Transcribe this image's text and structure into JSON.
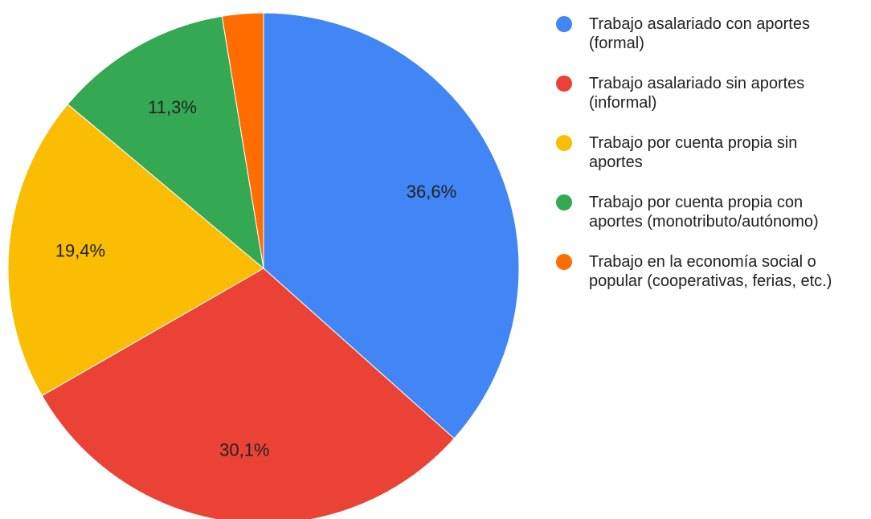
{
  "chart_data": {
    "type": "pie",
    "categories": [
      "Trabajo asalariado con aportes (formal)",
      "Trabajo asalariado sin aportes (informal)",
      "Trabajo por cuenta propia sin aportes",
      "Trabajo por cuenta propia con aportes (monotributo/autónomo)",
      "Trabajo en la economía social o popular (cooperativas, ferias, etc.)"
    ],
    "values": [
      36.6,
      30.1,
      19.4,
      11.3,
      2.6
    ],
    "value_labels": [
      "36,6%",
      "30,1%",
      "19,4%",
      "11,3%",
      null
    ],
    "colors": [
      "#4285f4",
      "#ea4335",
      "#fbbc04",
      "#34a853",
      "#ff6d01"
    ],
    "legend": "right"
  }
}
